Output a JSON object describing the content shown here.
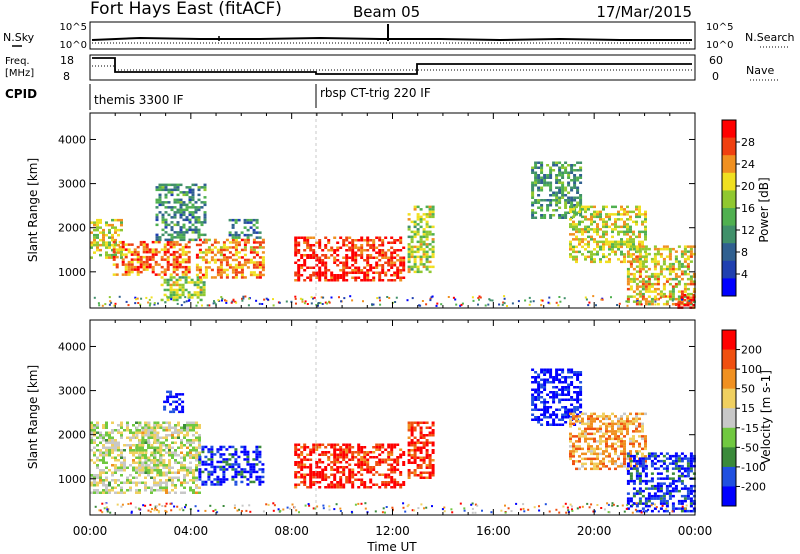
{
  "header": {
    "station": "Fort Hays East (fitACF)",
    "beam": "Beam 05",
    "date": "17/Mar/2015"
  },
  "noise_panel": {
    "left_label": "N.Sky",
    "right_label": "N.Search",
    "left_ticks": [
      "10^5",
      "10^0"
    ],
    "right_ticks": [
      "10^5",
      "10^0"
    ]
  },
  "freq_panel": {
    "left_label_line1": "Freq.",
    "left_label_line2": "[MHz]",
    "right_label": "Nave",
    "left_ticks": [
      "18",
      "8"
    ],
    "right_ticks": [
      "60",
      "0"
    ]
  },
  "cpid": {
    "label": "CPID",
    "modes": [
      {
        "name": "themis 3300 IF",
        "start_hour": 0
      },
      {
        "name": "rbsp CT-trig 220 IF",
        "start_hour": 9
      }
    ]
  },
  "chart_data": [
    {
      "type": "heatmap",
      "name": "Power",
      "ylabel": "Slant Range [km]",
      "xlabel": "",
      "x_range_hours": [
        0,
        24
      ],
      "ylim": [
        180,
        4600
      ],
      "yticks": [
        "1000",
        "2000",
        "3000",
        "4000"
      ],
      "colorbar": {
        "label": "Power [dB]",
        "ticks": [
          "4",
          "8",
          "12",
          "16",
          "20",
          "24",
          "28"
        ],
        "colors": [
          "#0000ff",
          "#2040b0",
          "#306090",
          "#40906a",
          "#50b050",
          "#90c830",
          "#f0e020",
          "#f09020",
          "#f04010",
          "#ff0000"
        ]
      },
      "regions": [
        {
          "x0": 0.0,
          "x1": 1.2,
          "y0": 1300,
          "y1": 2200,
          "level": 0.6
        },
        {
          "x0": 0.9,
          "x1": 3.9,
          "y0": 950,
          "y1": 1700,
          "level": 0.8
        },
        {
          "x0": 2.6,
          "x1": 4.6,
          "y0": 1700,
          "y1": 3000,
          "level": 0.35
        },
        {
          "x0": 2.8,
          "x1": 4.5,
          "y0": 350,
          "y1": 900,
          "level": 0.55
        },
        {
          "x0": 4.2,
          "x1": 6.9,
          "y0": 850,
          "y1": 1750,
          "level": 0.75
        },
        {
          "x0": 5.5,
          "x1": 6.8,
          "y0": 1750,
          "y1": 2200,
          "level": 0.3
        },
        {
          "x0": 8.1,
          "x1": 12.5,
          "y0": 800,
          "y1": 1800,
          "level": 0.9
        },
        {
          "x0": 12.6,
          "x1": 13.6,
          "y0": 1000,
          "y1": 2500,
          "level": 0.55
        },
        {
          "x0": 17.5,
          "x1": 19.5,
          "y0": 2200,
          "y1": 3500,
          "level": 0.4
        },
        {
          "x0": 19.0,
          "x1": 22.0,
          "y0": 1200,
          "y1": 2500,
          "level": 0.6
        },
        {
          "x0": 21.3,
          "x1": 24.0,
          "y0": 250,
          "y1": 1600,
          "level": 0.65
        },
        {
          "x0": 23.3,
          "x1": 24.0,
          "y0": 200,
          "y1": 500,
          "level": 0.95
        }
      ]
    },
    {
      "type": "heatmap",
      "name": "Velocity",
      "ylabel": "Slant Range [km]",
      "xlabel": "Time UT",
      "x_range_hours": [
        0,
        24
      ],
      "xticks": [
        "00:00",
        "04:00",
        "08:00",
        "12:00",
        "16:00",
        "20:00",
        "00:00"
      ],
      "ylim": [
        180,
        4600
      ],
      "yticks": [
        "1000",
        "2000",
        "3000",
        "4000"
      ],
      "colorbar": {
        "label": "Velocity [m s-1]",
        "ticks": [
          "200",
          "100",
          "50",
          "15",
          "-15",
          "-50",
          "-100",
          "-200"
        ],
        "colors": [
          "#0000ff",
          "#2050e0",
          "#3a8a3a",
          "#70c840",
          "#c8c8c8",
          "#f0d060",
          "#f09020",
          "#f05010",
          "#ff0000"
        ]
      },
      "regions": [
        {
          "x0": 0.0,
          "x1": 4.3,
          "y0": 700,
          "y1": 2300,
          "level": 0.5
        },
        {
          "x0": 1.8,
          "x1": 2.9,
          "y0": 1100,
          "y1": 2300,
          "level": 0.5
        },
        {
          "x0": 2.9,
          "x1": 3.7,
          "y0": 2500,
          "y1": 3000,
          "level": 0.05
        },
        {
          "x0": 4.3,
          "x1": 6.9,
          "y0": 850,
          "y1": 1750,
          "level": 0.1
        },
        {
          "x0": 8.1,
          "x1": 12.5,
          "y0": 800,
          "y1": 1800,
          "level": 0.92
        },
        {
          "x0": 12.6,
          "x1": 13.6,
          "y0": 1000,
          "y1": 2300,
          "level": 0.9
        },
        {
          "x0": 17.5,
          "x1": 19.5,
          "y0": 2200,
          "y1": 3500,
          "level": 0.05
        },
        {
          "x0": 19.0,
          "x1": 22.0,
          "y0": 1200,
          "y1": 2500,
          "level": 0.7
        },
        {
          "x0": 21.3,
          "x1": 24.0,
          "y0": 250,
          "y1": 1600,
          "level": 0.1
        }
      ]
    }
  ]
}
